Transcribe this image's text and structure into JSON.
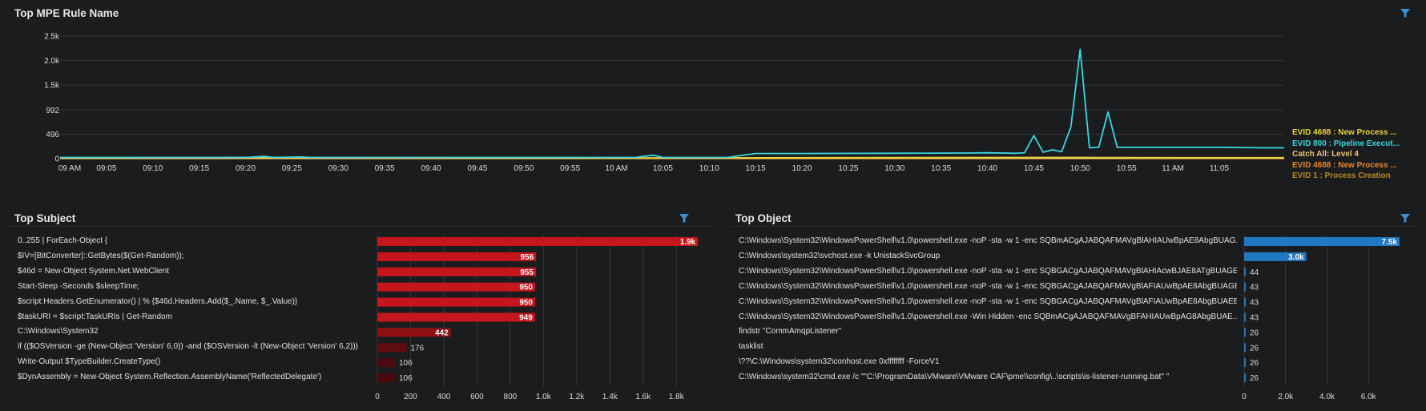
{
  "top_panel": {
    "title": "Top MPE Rule Name",
    "filter_icon": "filter-icon",
    "legend": [
      {
        "label": "EVID 4688 : New Process ...",
        "color": "#e8d33a"
      },
      {
        "label": "EVID 800 : Pipeline Execut...",
        "color": "#3ad6e0"
      },
      {
        "label": "Catch All: Level 4",
        "color": "#e8c47a"
      },
      {
        "label": "EVID 4688 : New Process ...",
        "color": "#e8872b"
      },
      {
        "label": "EVID 1 : Process Creation",
        "color": "#b58a28"
      }
    ]
  },
  "subject_panel": {
    "title": "Top Subject",
    "filter_icon": "filter-icon",
    "rows": [
      {
        "label": "0..255 | ForEach-Object {",
        "value_label": "1.9k"
      },
      {
        "label": "$IV=[BitConverter]::GetBytes($(Get-Random));",
        "value_label": "956"
      },
      {
        "label": "$46d = New-Object System.Net.WebClient",
        "value_label": "955"
      },
      {
        "label": "Start-Sleep -Seconds $sleepTime;",
        "value_label": "950"
      },
      {
        "label": "$script:Headers.GetEnumerator() | % {$46d.Headers.Add($_.Name, $_.Value)}",
        "value_label": "950"
      },
      {
        "label": "$taskURI = $script:TaskURIs | Get-Random",
        "value_label": "949"
      },
      {
        "label": "C:\\Windows\\System32",
        "value_label": "442"
      },
      {
        "label": "if (($OSVersion -ge (New-Object 'Version' 6,0)) -and ($OSVersion -lt (New-Object 'Version' 6,2)))",
        "value_label": "176"
      },
      {
        "label": "Write-Output $TypeBuilder.CreateType()",
        "value_label": "106"
      },
      {
        "label": "$DynAssembly = New-Object System.Reflection.AssemblyName('ReflectedDelegate')",
        "value_label": "106"
      }
    ]
  },
  "object_panel": {
    "title": "Top Object",
    "filter_icon": "filter-icon",
    "rows": [
      {
        "label": "C:\\Windows\\System32\\WindowsPowerShell\\v1.0\\powershell.exe -noP -sta -w 1 -enc SQBmACgAJABQAFMAVgBlAHIAUwBpAE8AbgBUAG...",
        "value_label": "7.5k"
      },
      {
        "label": "C:\\Windows\\system32\\svchost.exe -k UnistackSvcGroup",
        "value_label": "3.0k"
      },
      {
        "label": "C:\\Windows\\System32\\WindowsPowerShell\\v1.0\\powershell.exe -noP -sta -w 1 -enc SQBGACgAJABQAFMAVgBlAHIAcwBJAE8ATgBUAGE...",
        "value_label": "44"
      },
      {
        "label": "C:\\Windows\\System32\\WindowsPowerShell\\v1.0\\powershell.exe -noP -sta -w 1 -enc SQBGACgAJABQAFMAVgBlAFIAUwBpAE8AbgBUAGE...",
        "value_label": "43"
      },
      {
        "label": "C:\\Windows\\System32\\WindowsPowerShell\\v1.0\\powershell.exe -noP -sta -w 1 -enc SQBGACgAJABQAFMAVgBlAFIAUwBpAE8AbgBUAEE...",
        "value_label": "43"
      },
      {
        "label": "C:\\Windows\\System32\\WindowsPowerShell\\v1.0\\powershell.exe -Win Hidden -enc SQBmACgAJABQAFMAVgBFAHIAUwBpAG8AbgBUAE...",
        "value_label": "43"
      },
      {
        "label": "findstr \"CommAmqpListener\"",
        "value_label": "26"
      },
      {
        "label": "tasklist",
        "value_label": "26"
      },
      {
        "label": "\\??\\C:\\Windows\\system32\\conhost.exe 0xffffffff -ForceV1",
        "value_label": "26"
      },
      {
        "label": "C:\\Windows\\system32\\cmd.exe /c \"\"C:\\ProgramData\\VMware\\VMware CAF\\pme\\\\config\\..\\scripts\\is-listener-running.bat\" \"",
        "value_label": "26"
      }
    ]
  },
  "chart_data": [
    {
      "type": "line",
      "title": "Top MPE Rule Name",
      "xlabel": "",
      "ylabel": "",
      "ylim": [
        0,
        2500
      ],
      "y_ticks": [
        0,
        496,
        992,
        1500,
        2000,
        2500
      ],
      "y_tick_labels": [
        "0",
        "496",
        "992",
        "1.5k",
        "2.0k",
        "2.5k"
      ],
      "x_tick_labels": [
        "09 AM",
        "09:05",
        "09:10",
        "09:15",
        "09:20",
        "09:25",
        "09:30",
        "09:35",
        "09:40",
        "09:45",
        "09:50",
        "09:55",
        "10 AM",
        "10:05",
        "10:10",
        "10:15",
        "10:20",
        "10:25",
        "10:30",
        "10:35",
        "10:40",
        "10:45",
        "10:50",
        "10:55",
        "11 AM",
        "11:05"
      ],
      "x_minutes_range": [
        0,
        132
      ],
      "grid": true,
      "legend_position": "right",
      "series": [
        {
          "name": "EVID 800 : Pipeline Execut...",
          "color": "#3ad6e0",
          "points": [
            [
              0,
              25
            ],
            [
              20,
              25
            ],
            [
              22,
              45
            ],
            [
              23,
              25
            ],
            [
              26,
              35
            ],
            [
              27,
              25
            ],
            [
              62,
              25
            ],
            [
              64,
              70
            ],
            [
              65,
              25
            ],
            [
              72,
              25
            ],
            [
              74,
              80
            ],
            [
              75,
              105
            ],
            [
              80,
              105
            ],
            [
              90,
              110
            ],
            [
              98,
              115
            ],
            [
              100,
              120
            ],
            [
              103,
              110
            ],
            [
              104,
              120
            ],
            [
              105,
              470
            ],
            [
              106,
              130
            ],
            [
              107,
              180
            ],
            [
              108,
              140
            ],
            [
              109,
              650
            ],
            [
              110,
              2230
            ],
            [
              111,
              220
            ],
            [
              112,
              230
            ],
            [
              113,
              950
            ],
            [
              114,
              230
            ],
            [
              120,
              230
            ],
            [
              125,
              230
            ],
            [
              130,
              220
            ],
            [
              132,
              220
            ]
          ]
        },
        {
          "name": "EVID 4688 : New Process ...",
          "color": "#e8d33a",
          "points": [
            [
              0,
              15
            ],
            [
              22,
              25
            ],
            [
              26,
              22
            ],
            [
              60,
              15
            ],
            [
              108,
              25
            ],
            [
              120,
              20
            ],
            [
              132,
              20
            ]
          ]
        },
        {
          "name": "Catch All: Level 4",
          "color": "#e8c47a",
          "points": [
            [
              0,
              8
            ],
            [
              60,
              10
            ],
            [
              132,
              10
            ]
          ]
        },
        {
          "name": "EVID 4688 : New Process ...",
          "color": "#e8872b",
          "points": [
            [
              0,
              5
            ],
            [
              132,
              5
            ]
          ]
        },
        {
          "name": "EVID 1 : Process Creation",
          "color": "#b58a28",
          "points": [
            [
              0,
              2
            ],
            [
              132,
              3
            ]
          ]
        }
      ]
    },
    {
      "type": "bar",
      "title": "Top Subject",
      "orientation": "horizontal",
      "categories": [
        "0..255 | ForEach-Object {",
        "$IV=[BitConverter]::GetBytes($(Get-Random));",
        "$46d = New-Object System.Net.WebClient",
        "Start-Sleep -Seconds $sleepTime;",
        "$script:Headers.GetEnumerator() | % {$46d.Headers.Add($_.Name, $_.Value)}",
        "$taskURI = $script:TaskURIs | Get-Random",
        "C:\\Windows\\System32",
        "if (($OSVersion -ge (New-Object 'Version' 6,0)) -and ($OSVersion -lt (New-Object 'Version' 6,2)))",
        "Write-Output $TypeBuilder.CreateType()",
        "$DynAssembly = New-Object System.Reflection.AssemblyName('ReflectedDelegate')"
      ],
      "values": [
        1930,
        956,
        955,
        950,
        950,
        949,
        442,
        176,
        106,
        106
      ],
      "xlim": [
        0,
        1900
      ],
      "x_ticks": [
        0,
        200,
        400,
        600,
        800,
        1000,
        1200,
        1400,
        1600,
        1800
      ],
      "x_tick_labels": [
        "0",
        "200",
        "400",
        "600",
        "800",
        "1.0k",
        "1.2k",
        "1.4k",
        "1.6k",
        "1.8k"
      ],
      "colors": [
        "#c4161c",
        "#c4161c",
        "#c4161c",
        "#c4161c",
        "#c4161c",
        "#c4161c",
        "#8e1014",
        "#5e0c10",
        "#4a0b0e",
        "#4a0b0e"
      ],
      "grid": true
    },
    {
      "type": "bar",
      "title": "Top Object",
      "orientation": "horizontal",
      "categories": [
        "C:\\Windows\\System32\\WindowsPowerShell\\v1.0\\powershell.exe -noP -sta -w 1 -enc SQBmACgAJABQAFMAVgBlAHIAUwBpAE8AbgBUAG...",
        "C:\\Windows\\system32\\svchost.exe -k UnistackSvcGroup",
        "C:\\Windows\\System32\\WindowsPowerShell\\v1.0\\powershell.exe -noP -sta -w 1 -enc SQBGACgAJABQAFMAVgBlAHIAcwBJAE8ATgBUAGE...",
        "C:\\Windows\\System32\\WindowsPowerShell\\v1.0\\powershell.exe -noP -sta -w 1 -enc SQBGACgAJABQAFMAVgBlAFIAUwBpAE8AbgBUAGE...",
        "C:\\Windows\\System32\\WindowsPowerShell\\v1.0\\powershell.exe -noP -sta -w 1 -enc SQBGACgAJABQAFMAVgBlAFIAUwBpAE8AbgBUAEE...",
        "C:\\Windows\\System32\\WindowsPowerShell\\v1.0\\powershell.exe -Win Hidden -enc SQBmACgAJABQAFMAVgBFAHIAUwBpAG8AbgBUAE...",
        "findstr \"CommAmqpListener\"",
        "tasklist",
        "\\??\\C:\\Windows\\system32\\conhost.exe 0xffffffff -ForceV1",
        "C:\\Windows\\system32\\cmd.exe /c \"\"C:\\ProgramData\\VMware\\VMware CAF\\pme\\\\config\\..\\scripts\\is-listener-running.bat\" \""
      ],
      "values": [
        7500,
        3000,
        44,
        43,
        43,
        43,
        26,
        26,
        26,
        26
      ],
      "xlim": [
        0,
        7500
      ],
      "x_ticks": [
        0,
        2000,
        4000,
        6000
      ],
      "x_tick_labels": [
        "0",
        "2.0k",
        "4.0k",
        "6.0k"
      ],
      "colors": [
        "#1f78c1",
        "#1f78c1",
        "#1f78c1",
        "#1f78c1",
        "#1f78c1",
        "#1f78c1",
        "#1f78c1",
        "#1f78c1",
        "#1f78c1",
        "#1f78c1"
      ],
      "grid": true
    }
  ]
}
